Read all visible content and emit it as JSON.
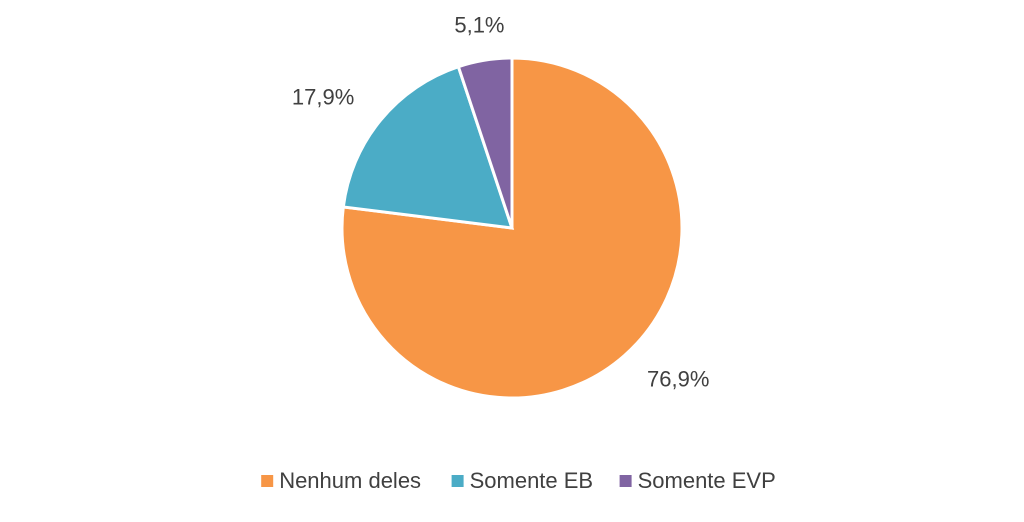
{
  "chart_data": {
    "type": "pie",
    "categories": [
      "Nenhum deles",
      "Somente EB",
      "Somente EVP"
    ],
    "values": [
      76.9,
      17.9,
      5.1
    ],
    "value_labels": [
      "76,9%",
      "17,9%",
      "5,1%"
    ],
    "colors": [
      "#F79646",
      "#4BACC6",
      "#8064A2"
    ],
    "legend": "bottom"
  }
}
